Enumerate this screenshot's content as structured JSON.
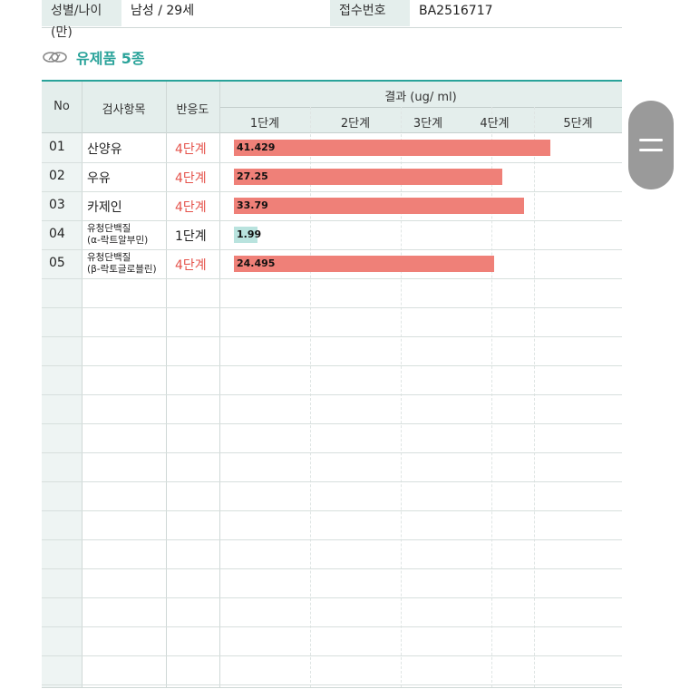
{
  "info": {
    "gender_age_label": "성별/나이(만)",
    "gender_age_value": "남성 / 29세",
    "receipt_label": "접수번호",
    "receipt_value": "BA2516717"
  },
  "section": {
    "icon": "milk-drop-icon",
    "title": "유제품 5종"
  },
  "table": {
    "headers": {
      "no": "No",
      "item": "검사항목",
      "reactivity": "반응도",
      "result": "결과 (ug/ ml)",
      "stages": [
        "1단계",
        "2단계",
        "3단계",
        "4단계",
        "5단계"
      ]
    },
    "rows": [
      {
        "no": "01",
        "item": "산양유",
        "sub": "",
        "level": "4단계",
        "level_color": "#e5534b",
        "value": "41.429",
        "bar_fraction": 0.872,
        "bar_color": "#ef8078"
      },
      {
        "no": "02",
        "item": "우유",
        "sub": "",
        "level": "4단계",
        "level_color": "#e5534b",
        "value": "27.25",
        "bar_fraction": 0.74,
        "bar_color": "#ef8078"
      },
      {
        "no": "03",
        "item": "카제인",
        "sub": "",
        "level": "4단계",
        "level_color": "#e5534b",
        "value": "33.79",
        "bar_fraction": 0.8,
        "bar_color": "#ef8078"
      },
      {
        "no": "04",
        "item": "유청단백질",
        "sub": "(α-락트알부민)",
        "level": "1단계",
        "level_color": "#222222",
        "value": "1.99",
        "bar_fraction": 0.06,
        "bar_color": "#b9e3de"
      },
      {
        "no": "05",
        "item": "유청단백질",
        "sub": "(β-락토글로블린)",
        "level": "4단계",
        "level_color": "#e5534b",
        "value": "24.495",
        "bar_fraction": 0.718,
        "bar_color": "#ef8078"
      }
    ]
  },
  "menu_button": {
    "icon": "hamburger-menu-icon"
  }
}
